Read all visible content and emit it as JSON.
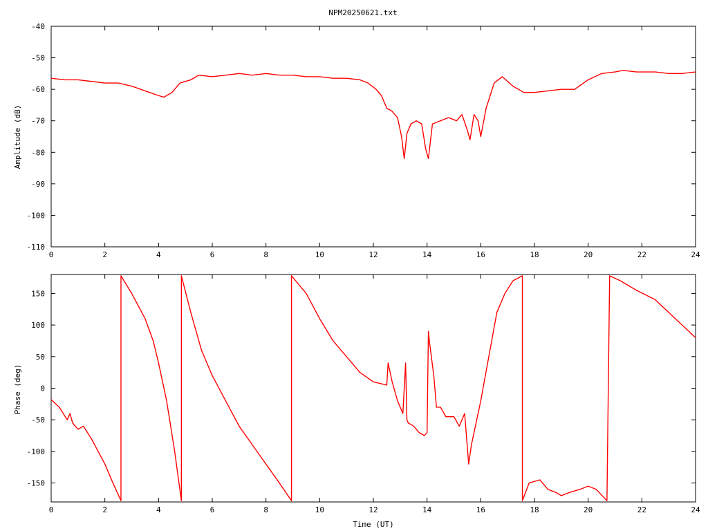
{
  "chart_data": [
    {
      "type": "line",
      "title": "NPM20250621.txt",
      "xlabel": "",
      "ylabel": "Amplitude (dB)",
      "xlim": [
        0,
        24
      ],
      "ylim": [
        -110,
        -40
      ],
      "x_ticks": [
        "0",
        "2",
        "4",
        "6",
        "8",
        "10",
        "12",
        "14",
        "16",
        "18",
        "20",
        "22",
        "24"
      ],
      "y_ticks": [
        "-40",
        "-50",
        "-60",
        "-70",
        "-80",
        "-90",
        "-100",
        "-110"
      ],
      "grid": false,
      "color": "#ff0000",
      "series": [
        {
          "x": [
            0,
            0.5,
            1,
            1.5,
            2,
            2.5,
            3,
            3.5,
            4,
            4.2,
            4.5,
            4.8,
            5.2,
            5.5,
            6,
            6.5,
            7,
            7.5,
            8,
            8.5,
            9,
            9.5,
            10,
            10.5,
            11,
            11.5,
            11.8,
            12.1,
            12.3,
            12.5,
            12.7,
            12.9,
            13.05,
            13.15,
            13.25,
            13.4,
            13.6,
            13.8,
            13.95,
            14.05,
            14.2,
            14.5,
            14.8,
            15.1,
            15.3,
            15.5,
            15.6,
            15.75,
            15.9,
            16.0,
            16.2,
            16.5,
            16.8,
            17.2,
            17.6,
            18,
            18.5,
            19,
            19.5,
            20,
            20.5,
            21,
            21.3,
            21.8,
            22.5,
            23,
            23.5,
            24
          ],
          "y": [
            -56.5,
            -57,
            -57,
            -57.5,
            -58,
            -58,
            -59,
            -60.5,
            -62,
            -62.5,
            -61,
            -58,
            -57,
            -55.5,
            -56,
            -55.5,
            -55,
            -55.5,
            -55,
            -55.5,
            -55.5,
            -56,
            -56,
            -56.5,
            -56.5,
            -57,
            -58,
            -60,
            -62,
            -66,
            -67,
            -69,
            -75,
            -82,
            -74,
            -71,
            -70,
            -71,
            -79,
            -82,
            -71,
            -70,
            -69,
            -70,
            -68,
            -73,
            -76,
            -68,
            -70,
            -75,
            -66,
            -58,
            -56,
            -59,
            -61,
            -61,
            -60.5,
            -60,
            -60,
            -57,
            -55,
            -54.5,
            -54,
            -54.5,
            -54.5,
            -55,
            -55,
            -54.5
          ]
        }
      ]
    },
    {
      "type": "line",
      "title": "",
      "xlabel": "Time (UT)",
      "ylabel": "Phase (deg)",
      "xlim": [
        0,
        24
      ],
      "ylim": [
        -180,
        180
      ],
      "x_ticks": [
        "0",
        "2",
        "4",
        "6",
        "8",
        "10",
        "12",
        "14",
        "16",
        "18",
        "20",
        "22",
        "24"
      ],
      "y_ticks": [
        "150",
        "100",
        "50",
        "0",
        "-50",
        "-100",
        "-150"
      ],
      "grid": false,
      "color": "#ff0000",
      "series": [
        {
          "x": [
            0,
            0.3,
            0.6,
            0.7,
            0.8,
            1.0,
            1.2,
            1.5,
            2.0,
            2.3,
            2.6,
            2.6,
            3.0,
            3.5,
            3.8,
            4.0,
            4.3,
            4.6,
            4.85,
            4.85,
            5.2,
            5.6,
            6.0,
            6.5,
            7.0,
            7.5,
            8.0,
            8.5,
            8.95,
            8.95,
            9.5,
            10.0,
            10.5,
            11.0,
            11.5,
            12.0,
            12.5,
            12.55,
            12.7,
            12.9,
            13.1,
            13.2,
            13.25,
            13.3,
            13.5,
            13.7,
            13.9,
            14.0,
            14.05,
            14.1,
            14.25,
            14.35,
            14.5,
            14.7,
            15.0,
            15.2,
            15.4,
            15.55,
            15.65,
            15.8,
            16.0,
            16.3,
            16.6,
            16.9,
            17.2,
            17.55,
            17.55,
            17.8,
            18.2,
            18.5,
            18.8,
            19.0,
            19.3,
            19.7,
            20.0,
            20.3,
            20.7,
            20.8,
            21.2,
            21.8,
            22.5,
            23.0,
            23.5,
            24
          ],
          "y": [
            -18,
            -30,
            -50,
            -40,
            -55,
            -65,
            -60,
            -80,
            -120,
            -150,
            -178,
            178,
            150,
            110,
            75,
            40,
            -20,
            -100,
            -178,
            178,
            120,
            60,
            20,
            -20,
            -60,
            -90,
            -120,
            -150,
            -178,
            178,
            150,
            110,
            75,
            50,
            25,
            10,
            5,
            40,
            10,
            -20,
            -40,
            40,
            -50,
            -55,
            -60,
            -70,
            -75,
            -70,
            90,
            70,
            20,
            -30,
            -30,
            -45,
            -45,
            -60,
            -40,
            -120,
            -90,
            -60,
            -20,
            50,
            120,
            150,
            170,
            178,
            -178,
            -150,
            -145,
            -160,
            -165,
            -170,
            -165,
            -160,
            -155,
            -160,
            -178,
            178,
            170,
            155,
            140,
            120,
            100,
            80
          ]
        }
      ]
    }
  ]
}
